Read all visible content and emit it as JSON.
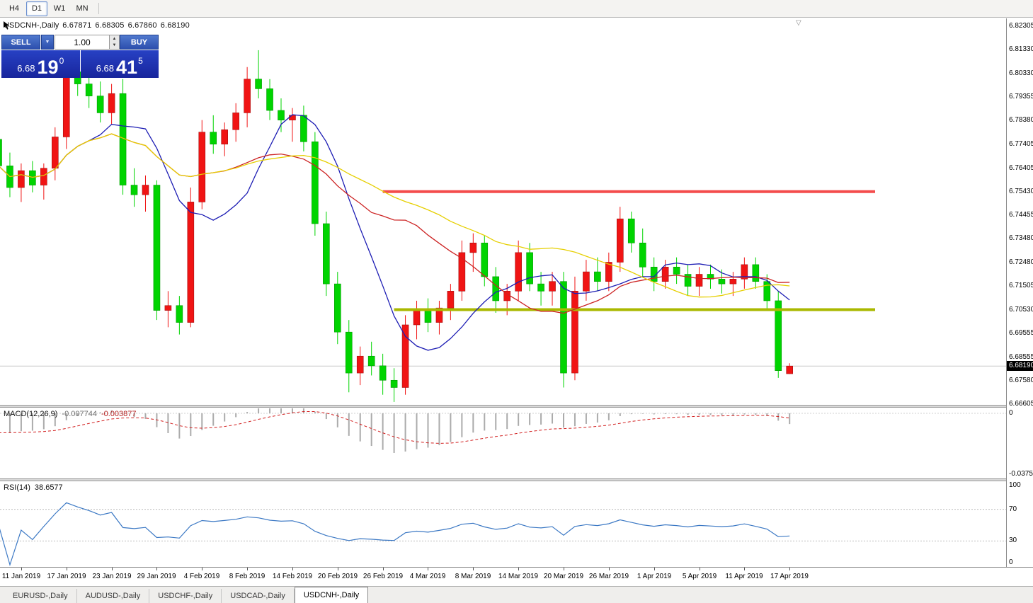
{
  "toolbar": {
    "timeframes": [
      {
        "label": "H4",
        "active": false
      },
      {
        "label": "D1",
        "active": true
      },
      {
        "label": "W1",
        "active": false
      },
      {
        "label": "MN",
        "active": false
      }
    ]
  },
  "chart_header": {
    "symbol": "USDCNH-,Daily",
    "open": "6.67871",
    "high": "6.68305",
    "low": "6.67860",
    "close": "6.68190"
  },
  "trade_panel": {
    "sell_label": "SELL",
    "buy_label": "BUY",
    "volume": "1.00",
    "sell_price": {
      "prefix": "6.68",
      "big": "19",
      "sup": "0"
    },
    "buy_price": {
      "prefix": "6.68",
      "big": "41",
      "sup": "5"
    }
  },
  "price_axis": {
    "labels": [
      "6.82305",
      "6.81330",
      "6.80330",
      "6.79355",
      "6.78380",
      "6.77405",
      "6.76405",
      "6.75430",
      "6.74455",
      "6.73480",
      "6.72480",
      "6.71505",
      "6.70530",
      "6.69555",
      "6.68555",
      "6.67580",
      "6.66605"
    ],
    "current_price": "6.68190"
  },
  "indicators": {
    "macd": {
      "label": "MACD(12,26,9)",
      "value_main": "-0.007744",
      "value_signal": "-0.003877",
      "scale_zero": "0",
      "scale_min": "-0.03752",
      "fast": 12,
      "slow": 26,
      "signal": 9
    },
    "rsi": {
      "label": "RSI(14)",
      "value": "38.6577",
      "period": 14,
      "scale": [
        "100",
        "70",
        "30",
        "0"
      ]
    }
  },
  "time_axis": {
    "labels": [
      {
        "text": "11 Jan 2019",
        "index": 2
      },
      {
        "text": "17 Jan 2019",
        "index": 6
      },
      {
        "text": "23 Jan 2019",
        "index": 10
      },
      {
        "text": "29 Jan 2019",
        "index": 14
      },
      {
        "text": "4 Feb 2019",
        "index": 18
      },
      {
        "text": "8 Feb 2019",
        "index": 22
      },
      {
        "text": "14 Feb 2019",
        "index": 26
      },
      {
        "text": "20 Feb 2019",
        "index": 30
      },
      {
        "text": "26 Feb 2019",
        "index": 34
      },
      {
        "text": "4 Mar 2019",
        "index": 38
      },
      {
        "text": "8 Mar 2019",
        "index": 42
      },
      {
        "text": "14 Mar 2019",
        "index": 46
      },
      {
        "text": "20 Mar 2019",
        "index": 50
      },
      {
        "text": "26 Mar 2019",
        "index": 54
      },
      {
        "text": "1 Apr 2019",
        "index": 58
      },
      {
        "text": "5 Apr 2019",
        "index": 62
      },
      {
        "text": "11 Apr 2019",
        "index": 66
      },
      {
        "text": "17 Apr 2019",
        "index": 70
      }
    ]
  },
  "bottom_tabs": [
    {
      "label": "EURUSD-,Daily",
      "active": false
    },
    {
      "label": "AUDUSD-,Daily",
      "active": false
    },
    {
      "label": "USDCHF-,Daily",
      "active": false
    },
    {
      "label": "USDCAD-,Daily",
      "active": false
    },
    {
      "label": "USDCNH-,Daily",
      "active": true
    }
  ],
  "chart_data": {
    "type": "candlestick",
    "symbol": "USDCNH",
    "timeframe": "Daily",
    "ylim": [
      6.6658,
      6.8262
    ],
    "up_color": "#f01414",
    "down_color": "#00d400",
    "bid": 6.6819,
    "moving_averages": [
      {
        "period": 9,
        "color": "#1d1db4"
      },
      {
        "period": 20,
        "color": "#cc2222"
      },
      {
        "period": 34,
        "color": "#e6cf00"
      }
    ],
    "levels": [
      {
        "price": 6.7543,
        "color": "#f44c4c",
        "from_index": 34
      },
      {
        "price": 6.7053,
        "color": "#aab800",
        "from_index": 35
      }
    ],
    "candles": [
      [
        "9 Jan",
        6.776,
        6.79,
        6.756,
        6.765
      ],
      [
        "10 Jan",
        6.765,
        6.7705,
        6.752,
        6.756
      ],
      [
        "11 Jan",
        6.756,
        6.766,
        6.75,
        6.763
      ],
      [
        "14 Jan",
        6.763,
        6.767,
        6.754,
        6.757
      ],
      [
        "15 Jan",
        6.757,
        6.766,
        6.751,
        6.764
      ],
      [
        "16 Jan",
        6.764,
        6.781,
        6.759,
        6.777
      ],
      [
        "17 Jan",
        6.777,
        6.809,
        6.772,
        6.804
      ],
      [
        "18 Jan",
        6.804,
        6.811,
        6.794,
        6.799
      ],
      [
        "21 Jan",
        6.799,
        6.807,
        6.789,
        6.794
      ],
      [
        "22 Jan",
        6.794,
        6.8,
        6.783,
        6.787
      ],
      [
        "23 Jan",
        6.787,
        6.799,
        6.782,
        6.795
      ],
      [
        "24 Jan",
        6.795,
        6.801,
        6.753,
        6.757
      ],
      [
        "25 Jan",
        6.757,
        6.764,
        6.748,
        6.753
      ],
      [
        "28 Jan",
        6.753,
        6.761,
        6.746,
        6.757
      ],
      [
        "29 Jan",
        6.757,
        6.759,
        6.701,
        6.705
      ],
      [
        "30 Jan",
        6.705,
        6.713,
        6.698,
        6.707
      ],
      [
        "31 Jan",
        6.707,
        6.711,
        6.695,
        6.7
      ],
      [
        "1 Feb",
        6.7,
        6.756,
        6.698,
        6.75
      ],
      [
        "4 Feb",
        6.75,
        6.784,
        6.747,
        6.779
      ],
      [
        "5 Feb",
        6.779,
        6.786,
        6.77,
        6.774
      ],
      [
        "6 Feb",
        6.774,
        6.783,
        6.769,
        6.78
      ],
      [
        "7 Feb",
        6.78,
        6.791,
        6.775,
        6.787
      ],
      [
        "8 Feb",
        6.787,
        6.806,
        6.781,
        6.801
      ],
      [
        "11 Feb",
        6.801,
        6.813,
        6.793,
        6.797
      ],
      [
        "12 Feb",
        6.797,
        6.801,
        6.784,
        6.788
      ],
      [
        "13 Feb",
        6.788,
        6.793,
        6.779,
        6.784
      ],
      [
        "14 Feb",
        6.784,
        6.789,
        6.775,
        6.786
      ],
      [
        "15 Feb",
        6.786,
        6.79,
        6.771,
        6.775
      ],
      [
        "18 Feb",
        6.775,
        6.779,
        6.736,
        6.741
      ],
      [
        "19 Feb",
        6.741,
        6.746,
        6.711,
        6.716
      ],
      [
        "20 Feb",
        6.716,
        6.721,
        6.691,
        6.696
      ],
      [
        "21 Feb",
        6.696,
        6.701,
        6.671,
        6.679
      ],
      [
        "22 Feb",
        6.679,
        6.69,
        6.674,
        6.686
      ],
      [
        "25 Feb",
        6.686,
        6.692,
        6.678,
        6.682
      ],
      [
        "26 Feb",
        6.682,
        6.687,
        6.67,
        6.676
      ],
      [
        "27 Feb",
        6.676,
        6.681,
        6.667,
        6.673
      ],
      [
        "28 Feb",
        6.673,
        6.703,
        6.67,
        6.699
      ],
      [
        "1 Mar",
        6.699,
        6.709,
        6.693,
        6.705
      ],
      [
        "4 Mar",
        6.705,
        6.71,
        6.696,
        6.7
      ],
      [
        "5 Mar",
        6.7,
        6.709,
        6.695,
        6.706
      ],
      [
        "6 Mar",
        6.706,
        6.716,
        6.701,
        6.713
      ],
      [
        "7 Mar",
        6.713,
        6.734,
        6.709,
        6.729
      ],
      [
        "8 Mar",
        6.729,
        6.737,
        6.721,
        6.733
      ],
      [
        "11 Mar",
        6.733,
        6.736,
        6.715,
        6.719
      ],
      [
        "12 Mar",
        6.719,
        6.723,
        6.704,
        6.709
      ],
      [
        "13 Mar",
        6.709,
        6.716,
        6.703,
        6.713
      ],
      [
        "14 Mar",
        6.713,
        6.734,
        6.709,
        6.729
      ],
      [
        "15 Mar",
        6.729,
        6.733,
        6.713,
        6.716
      ],
      [
        "18 Mar",
        6.716,
        6.721,
        6.707,
        6.713
      ],
      [
        "19 Mar",
        6.713,
        6.721,
        6.707,
        6.717
      ],
      [
        "20 Mar",
        6.717,
        6.721,
        6.673,
        6.679
      ],
      [
        "21 Mar",
        6.679,
        6.719,
        6.676,
        6.713
      ],
      [
        "22 Mar",
        6.713,
        6.726,
        6.709,
        6.721
      ],
      [
        "25 Mar",
        6.721,
        6.727,
        6.713,
        6.717
      ],
      [
        "26 Mar",
        6.717,
        6.729,
        6.713,
        6.725
      ],
      [
        "27 Mar",
        6.725,
        6.748,
        6.721,
        6.743
      ],
      [
        "28 Mar",
        6.743,
        6.746,
        6.729,
        6.733
      ],
      [
        "29 Mar",
        6.733,
        6.739,
        6.719,
        6.723
      ],
      [
        "1 Apr",
        6.723,
        6.727,
        6.713,
        6.717
      ],
      [
        "2 Apr",
        6.717,
        6.726,
        6.714,
        6.723
      ],
      [
        "3 Apr",
        6.723,
        6.727,
        6.716,
        6.72
      ],
      [
        "4 Apr",
        6.72,
        6.724,
        6.711,
        6.715
      ],
      [
        "5 Apr",
        6.715,
        6.723,
        6.711,
        6.72
      ],
      [
        "8 Apr",
        6.72,
        6.724,
        6.714,
        6.718
      ],
      [
        "9 Apr",
        6.718,
        6.722,
        6.712,
        6.716
      ],
      [
        "10 Apr",
        6.716,
        6.721,
        6.711,
        6.718
      ],
      [
        "11 Apr",
        6.718,
        6.727,
        6.714,
        6.724
      ],
      [
        "12 Apr",
        6.724,
        6.727,
        6.714,
        6.717
      ],
      [
        "15 Apr",
        6.717,
        6.72,
        6.705,
        6.709
      ],
      [
        "16 Apr",
        6.709,
        6.713,
        6.677,
        6.68
      ],
      [
        "17 Apr",
        6.67871,
        6.68305,
        6.6786,
        6.6819
      ]
    ]
  }
}
